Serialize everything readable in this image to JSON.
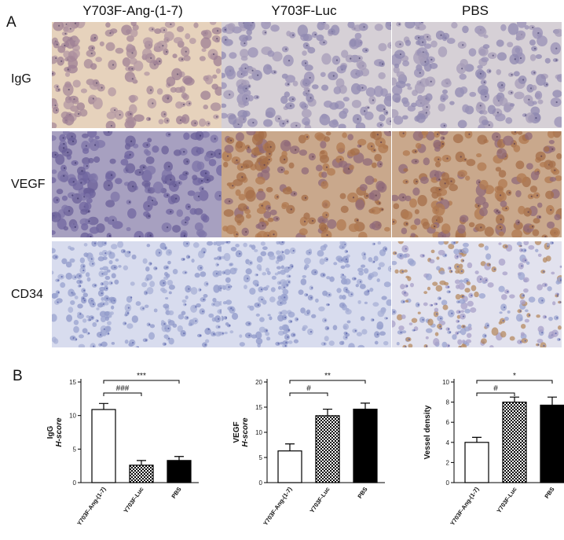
{
  "panel_a": {
    "letter": "A",
    "columns": [
      "Y703F-Ang-(1-7)",
      "Y703F-Luc",
      "PBS"
    ],
    "rows": [
      "IgG",
      "VEGF",
      "CD34"
    ],
    "tiles": [
      {
        "row": 0,
        "col": 0,
        "stain": "light-brown"
      },
      {
        "row": 0,
        "col": 1,
        "stain": "blue-grey"
      },
      {
        "row": 0,
        "col": 2,
        "stain": "blue-grey"
      },
      {
        "row": 1,
        "col": 0,
        "stain": "blue-purple"
      },
      {
        "row": 1,
        "col": 1,
        "stain": "brown"
      },
      {
        "row": 1,
        "col": 2,
        "stain": "brown"
      },
      {
        "row": 2,
        "col": 0,
        "stain": "pale-blue"
      },
      {
        "row": 2,
        "col": 1,
        "stain": "pale-blue"
      },
      {
        "row": 2,
        "col": 2,
        "stain": "pale-blue-brown"
      }
    ]
  },
  "panel_b": {
    "letter": "B"
  },
  "chart_data": [
    {
      "type": "bar",
      "ylabel_line1": "IgG",
      "ylabel_line2": "H-score",
      "categories": [
        "Y703F-Ang-(1-7)",
        "Y703F-Luc",
        "PBS"
      ],
      "values": [
        10.9,
        2.6,
        3.3
      ],
      "errors": [
        0.9,
        0.7,
        0.6
      ],
      "fills": [
        "white",
        "checker",
        "black"
      ],
      "ylim": [
        0,
        15
      ],
      "yticks": [
        0,
        5,
        10,
        15
      ],
      "significance": [
        {
          "from": 0,
          "to": 1,
          "label": "###"
        },
        {
          "from": 0,
          "to": 2,
          "label": "***"
        }
      ]
    },
    {
      "type": "bar",
      "ylabel_line1": "VEGF",
      "ylabel_line2": "H-score",
      "categories": [
        "Y703F-Ang-(1-7)",
        "Y703F-Luc",
        "PBS"
      ],
      "values": [
        6.3,
        13.3,
        14.6
      ],
      "errors": [
        1.4,
        1.3,
        1.2
      ],
      "fills": [
        "white",
        "checker",
        "black"
      ],
      "ylim": [
        0,
        20
      ],
      "yticks": [
        0,
        5,
        10,
        15,
        20
      ],
      "significance": [
        {
          "from": 0,
          "to": 1,
          "label": "#"
        },
        {
          "from": 0,
          "to": 2,
          "label": "**"
        }
      ]
    },
    {
      "type": "bar",
      "ylabel_line1": "Vessel density",
      "ylabel_line2": "",
      "categories": [
        "Y703F-Ang-(1-7)",
        "Y703F-Luc",
        "PBS"
      ],
      "values": [
        4.0,
        8.0,
        7.7
      ],
      "errors": [
        0.5,
        0.5,
        0.8
      ],
      "fills": [
        "white",
        "checker",
        "black"
      ],
      "ylim": [
        0,
        10
      ],
      "yticks": [
        0,
        2,
        4,
        6,
        8,
        10
      ],
      "significance": [
        {
          "from": 0,
          "to": 1,
          "label": "#"
        },
        {
          "from": 0,
          "to": 2,
          "label": "*"
        }
      ]
    }
  ]
}
